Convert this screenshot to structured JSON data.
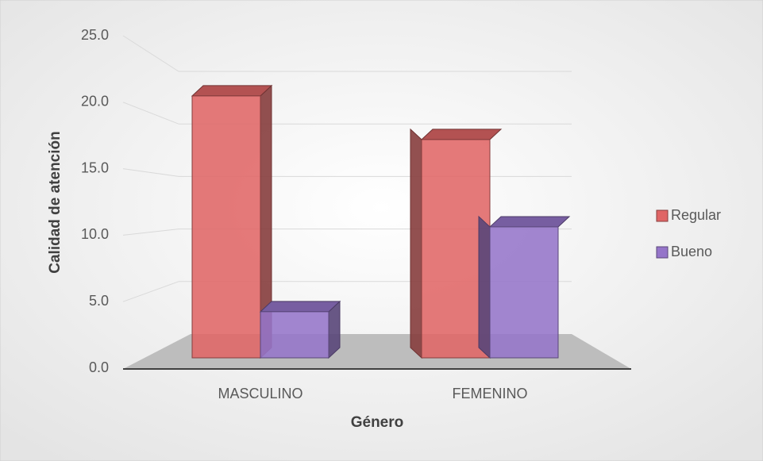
{
  "chart_data": {
    "type": "bar3d",
    "x_label": "Género",
    "y_label": "Calidad de atención",
    "categories": [
      "MASCULINO",
      "FEMENINO"
    ],
    "series": [
      {
        "name": "Regular",
        "color": "#e06666",
        "values": [
          21.0,
          17.5
        ]
      },
      {
        "name": "Bueno",
        "color": "#9575c9",
        "values": [
          3.7,
          10.5
        ]
      }
    ],
    "ylim": [
      0,
      25
    ],
    "yticks": [
      {
        "value": 0,
        "label": "0.0"
      },
      {
        "value": 5,
        "label": "5.0"
      },
      {
        "value": 10,
        "label": "10.0"
      },
      {
        "value": 15,
        "label": "15.0"
      },
      {
        "value": 20,
        "label": "20.0"
      },
      {
        "value": 25,
        "label": "25.0"
      }
    ],
    "grid": true,
    "legend": "right"
  }
}
